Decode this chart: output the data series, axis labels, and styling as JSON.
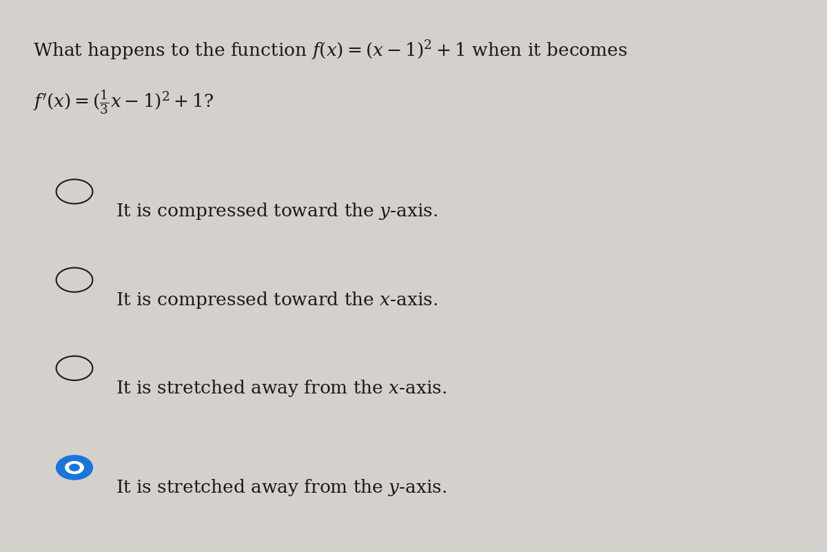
{
  "background_color": "#d4d0cc",
  "question_line1": "What happens to the function $f(x) = (x - 1)^2 + 1$ when it becomes",
  "question_line2": "$f'(x) = (\\frac{1}{3}x - 1)^2 + 1$?",
  "options": [
    "It is compressed toward the $y$-axis.",
    "It is compressed toward the $x$-axis.",
    "It is stretched away from the $x$-axis.",
    "It is stretched away from the $y$-axis."
  ],
  "selected_option": 3,
  "text_color": "#1a1a1a",
  "circle_color_empty": "#1a1a1a",
  "circle_color_filled": "#1a75d8",
  "question_fontsize": 19,
  "option_fontsize": 19,
  "fig_width": 12.0,
  "fig_height": 8.01
}
